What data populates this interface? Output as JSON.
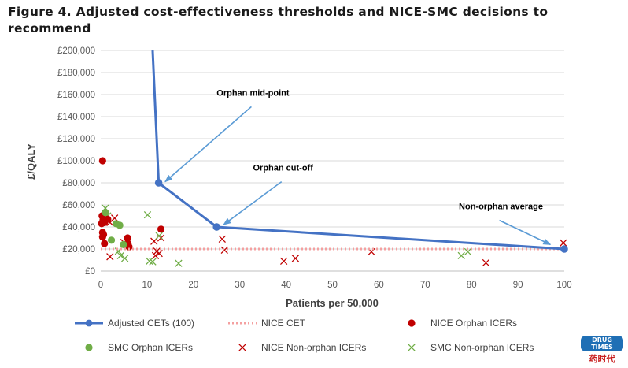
{
  "figure": {
    "title": "Figure 4. Adjusted cost-effectiveness thresholds and NICE-SMC decisions to recommend"
  },
  "watermark": {
    "line1": "DRUG TIMES",
    "line2": "药时代"
  },
  "colors": {
    "adjusted_cet": "#4472C4",
    "nice_cet": "#F4A0A0",
    "nice_orphan": "#C00000",
    "smc_orphan": "#70AD47",
    "nice_nonorphan": "#C00000",
    "smc_nonorphan": "#70AD47",
    "arrow": "#5B9BD5"
  },
  "chart_data": {
    "type": "scatter",
    "xlabel": "Patients per 50,000",
    "ylabel": "£/QALY",
    "xlim": [
      0,
      100
    ],
    "ylim": [
      0,
      200000
    ],
    "x_ticks": [
      0,
      10,
      20,
      30,
      40,
      50,
      60,
      70,
      80,
      90,
      100
    ],
    "x_tick_labels": [
      "0",
      "10",
      "20",
      "30",
      "40",
      "50",
      "60",
      "70",
      "80",
      "90",
      "100"
    ],
    "y_ticks": [
      0,
      20000,
      40000,
      60000,
      80000,
      100000,
      120000,
      140000,
      160000,
      180000,
      200000
    ],
    "y_tick_labels": [
      "£0",
      "£20,000",
      "£40,000",
      "£60,000",
      "£80,000",
      "£100,000",
      "£120,000",
      "£140,000",
      "£160,000",
      "£180,000",
      "£200,000"
    ],
    "grid": "horizontal",
    "legend_position": "bottom",
    "series": [
      {
        "name": "Adjusted CETs (100)",
        "kind": "line-marker",
        "color_key": "adjusted_cet",
        "points": [
          [
            11.2,
            200000
          ],
          [
            12.5,
            80000
          ],
          [
            25,
            40000
          ],
          [
            100,
            20000
          ]
        ],
        "marker_points": [
          [
            12.5,
            80000
          ],
          [
            25,
            40000
          ],
          [
            100,
            20000
          ]
        ]
      },
      {
        "name": "NICE CET",
        "kind": "dotted-line",
        "color_key": "nice_cet",
        "points": [
          [
            0,
            20000
          ],
          [
            100,
            20000
          ]
        ]
      },
      {
        "name": "NICE Orphan ICERs",
        "kind": "dot",
        "color_key": "nice_orphan",
        "points": [
          [
            0.4,
            100000
          ],
          [
            0.3,
            50000
          ],
          [
            0.5,
            46000
          ],
          [
            0.2,
            43000
          ],
          [
            0.8,
            44000
          ],
          [
            0.4,
            35000
          ],
          [
            0.6,
            33000
          ],
          [
            0.4,
            31000
          ],
          [
            0.8,
            25000
          ],
          [
            5.8,
            30000
          ],
          [
            5.9,
            25000
          ],
          [
            6.1,
            22000
          ],
          [
            13,
            38000
          ],
          [
            1.5,
            47000
          ]
        ]
      },
      {
        "name": "SMC Orphan ICERs",
        "kind": "dot",
        "color_key": "smc_orphan",
        "points": [
          [
            1,
            53000
          ],
          [
            3.3,
            43000
          ],
          [
            4.1,
            41500
          ],
          [
            2.3,
            28000
          ],
          [
            4.9,
            24000
          ],
          [
            25,
            40000
          ]
        ]
      },
      {
        "name": "NICE Non-orphan ICERs",
        "kind": "x",
        "color_key": "nice_nonorphan",
        "points": [
          [
            2,
            44000
          ],
          [
            3,
            48000
          ],
          [
            2,
            13000
          ],
          [
            5,
            26000
          ],
          [
            11.5,
            27000
          ],
          [
            11.8,
            14000
          ],
          [
            12.1,
            18000
          ],
          [
            12.6,
            16000
          ],
          [
            13,
            30000
          ],
          [
            26.2,
            29000
          ],
          [
            26.7,
            19000
          ],
          [
            39.5,
            9000
          ],
          [
            42,
            11500
          ],
          [
            58.4,
            17500
          ],
          [
            83.1,
            7500
          ],
          [
            99.8,
            25500
          ]
        ]
      },
      {
        "name": "SMC Non-orphan ICERs",
        "kind": "x",
        "color_key": "smc_nonorphan",
        "points": [
          [
            1,
            57000
          ],
          [
            1.5,
            50000
          ],
          [
            3.8,
            18000
          ],
          [
            4.3,
            14000
          ],
          [
            5.2,
            11500
          ],
          [
            10.1,
            51000
          ],
          [
            10.5,
            9000
          ],
          [
            11.2,
            8500
          ],
          [
            12.6,
            32000
          ],
          [
            16.8,
            7000
          ],
          [
            77.8,
            14000
          ],
          [
            79.2,
            17500
          ]
        ]
      }
    ],
    "annotations": [
      {
        "text": "Orphan mid-point",
        "tip": [
          13.9,
          81000
        ],
        "tail": [
          32.5,
          149000
        ]
      },
      {
        "text": "Orphan cut-off",
        "tip": [
          26.5,
          42000
        ],
        "tail": [
          39,
          81000
        ]
      },
      {
        "text": "Non-orphan average",
        "tip": [
          97,
          24000
        ],
        "tail": [
          86,
          46000
        ]
      }
    ]
  }
}
